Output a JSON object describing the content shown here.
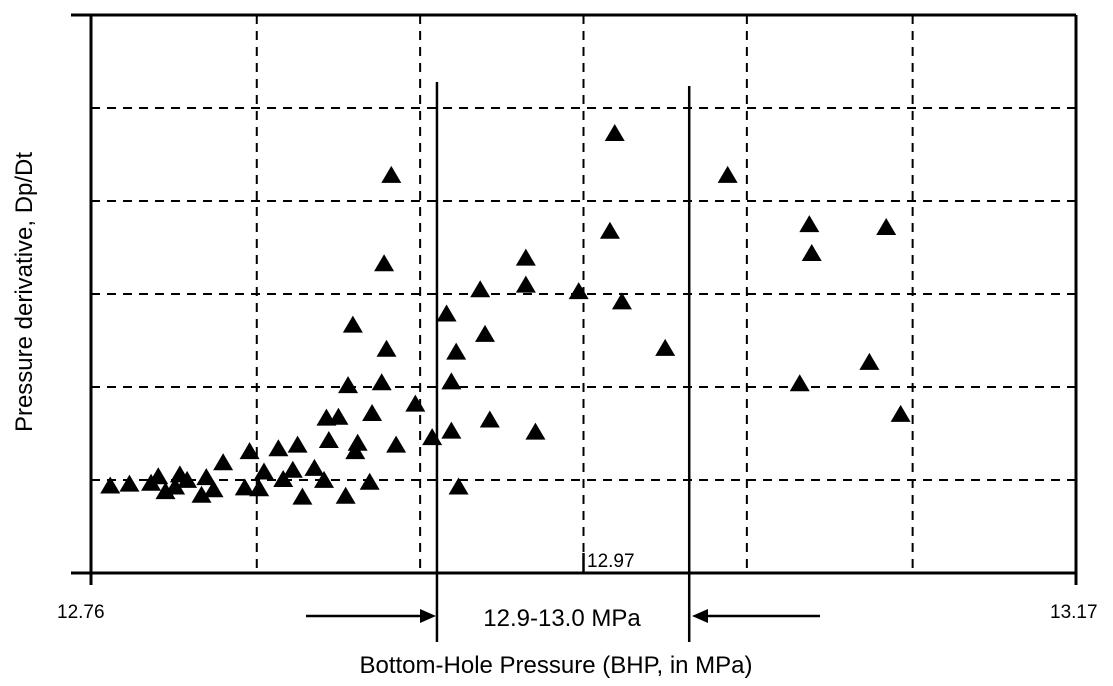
{
  "chart_data": {
    "type": "scatter",
    "title": "",
    "xlabel": "Bottom-Hole Pressure (BHP, in MPa)",
    "ylabel": "Pressure derivative, Dp/Dt",
    "xlim": [
      12.76,
      13.17
    ],
    "ylim": [
      0,
      6
    ],
    "x_tick_labels": [
      {
        "value": 12.76,
        "label": "12.76"
      },
      {
        "value": 13.17,
        "label": "13.17"
      }
    ],
    "x_gridlines": [
      12.829,
      12.897,
      12.965,
      13.033,
      13.102
    ],
    "y_gridlines": [
      1,
      2,
      3,
      4,
      5
    ],
    "grid": true,
    "marker": "triangle",
    "annotations": {
      "range_label": "12.9-13.0 MPa",
      "range_bounds": [
        12.904,
        13.009
      ],
      "mid_marker_label": "12.97",
      "mid_marker_value": 12.965
    },
    "series": [
      {
        "points": [
          [
            12.768,
            0.93
          ],
          [
            12.776,
            0.95
          ],
          [
            12.785,
            0.96
          ],
          [
            12.788,
            1.03
          ],
          [
            12.791,
            0.87
          ],
          [
            12.795,
            0.92
          ],
          [
            12.797,
            1.05
          ],
          [
            12.8,
            0.99
          ],
          [
            12.806,
            0.83
          ],
          [
            12.808,
            1.02
          ],
          [
            12.811,
            0.89
          ],
          [
            12.815,
            1.18
          ],
          [
            12.824,
            0.91
          ],
          [
            12.826,
            1.3
          ],
          [
            12.83,
            0.9
          ],
          [
            12.832,
            1.08
          ],
          [
            12.838,
            1.33
          ],
          [
            12.84,
            1.0
          ],
          [
            12.844,
            1.1
          ],
          [
            12.846,
            1.37
          ],
          [
            12.848,
            0.81
          ],
          [
            12.853,
            1.12
          ],
          [
            12.857,
            0.99
          ],
          [
            12.858,
            1.66
          ],
          [
            12.859,
            1.42
          ],
          [
            12.863,
            1.67
          ],
          [
            12.866,
            0.82
          ],
          [
            12.867,
            2.01
          ],
          [
            12.869,
            2.66
          ],
          [
            12.87,
            1.3
          ],
          [
            12.871,
            1.39
          ],
          [
            12.876,
            0.97
          ],
          [
            12.877,
            1.71
          ],
          [
            12.881,
            2.04
          ],
          [
            12.882,
            3.32
          ],
          [
            12.883,
            2.4
          ],
          [
            12.885,
            4.27
          ],
          [
            12.887,
            1.37
          ],
          [
            12.895,
            1.81
          ],
          [
            12.902,
            1.45
          ],
          [
            12.908,
            2.78
          ],
          [
            12.91,
            2.05
          ],
          [
            12.91,
            1.52
          ],
          [
            12.912,
            2.37
          ],
          [
            12.913,
            0.92
          ],
          [
            12.922,
            3.04
          ],
          [
            12.924,
            2.56
          ],
          [
            12.926,
            1.64
          ],
          [
            12.941,
            3.38
          ],
          [
            12.941,
            3.09
          ],
          [
            12.945,
            1.51
          ],
          [
            12.963,
            3.02
          ],
          [
            12.976,
            3.67
          ],
          [
            12.978,
            4.72
          ],
          [
            12.981,
            2.91
          ],
          [
            12.999,
            2.41
          ],
          [
            13.025,
            4.27
          ],
          [
            13.055,
            2.03
          ],
          [
            13.059,
            3.74
          ],
          [
            13.06,
            3.43
          ],
          [
            13.084,
            2.26
          ],
          [
            13.091,
            3.71
          ],
          [
            13.097,
            1.7
          ]
        ]
      }
    ]
  }
}
